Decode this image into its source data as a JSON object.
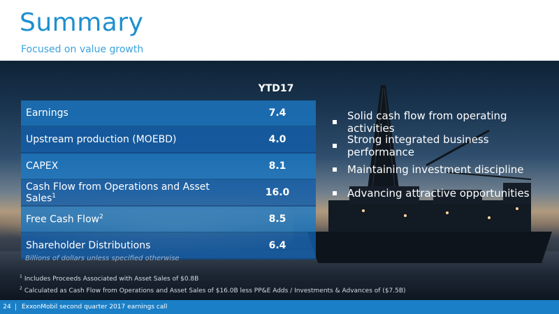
{
  "header": {
    "title": "Summary",
    "subtitle": "Focused on value growth"
  },
  "table": {
    "column_header": "YTD17",
    "rows": [
      {
        "label": "Earnings",
        "value": "7.4"
      },
      {
        "label": "Upstream production (MOEBD)",
        "value": "4.0"
      },
      {
        "label": "CAPEX",
        "value": "8.1"
      },
      {
        "label": "Cash Flow from Operations and Asset Sales",
        "sup": "1",
        "value": "16.0"
      },
      {
        "label": "Free Cash Flow",
        "sup": "2",
        "value": "8.5"
      },
      {
        "label": "Shareholder Distributions",
        "value": "6.4"
      }
    ],
    "note": "Billions of dollars unless specified otherwise"
  },
  "bullets": [
    "Solid cash flow from operating activities",
    "Strong integrated business performance",
    "Maintaining investment discipline",
    "Advancing attractive opportunities"
  ],
  "footnotes": [
    {
      "num": "1",
      "text": "Includes Proceeds Associated with Asset Sales of $0.8B"
    },
    {
      "num": "2",
      "text": "Calculated as Cash Flow from Operations and Asset Sales of $16.0B less PP&E Adds / Investments & Advances of ($7.5B)"
    }
  ],
  "footer": {
    "page_number": "24",
    "text": "ExxonMobil second quarter 2017 earnings call",
    "color": "#1a7fc6"
  },
  "colors": {
    "title": "#1e8fcf",
    "table_row": "#1a78c4"
  }
}
